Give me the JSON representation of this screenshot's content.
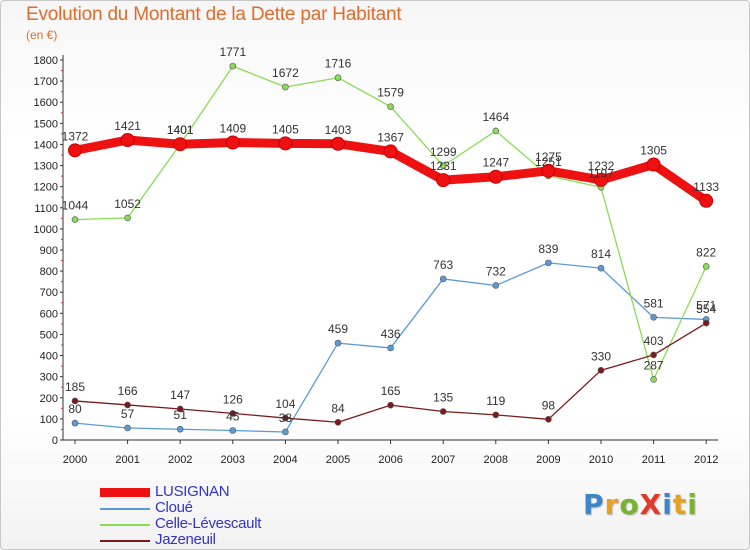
{
  "title": "Evolution du Montant de la Dette par Habitant",
  "subtitle": "(en €)",
  "logo": {
    "text": "ProXiti",
    "letters": [
      {
        "ch": "P",
        "color": "#3a86c8"
      },
      {
        "ch": "r",
        "color": "#e8a020"
      },
      {
        "ch": "o",
        "color": "#7ab32e"
      },
      {
        "ch": "X",
        "color": "#e03a2a"
      },
      {
        "ch": "i",
        "color": "#3a86c8"
      },
      {
        "ch": "t",
        "color": "#e8a020"
      },
      {
        "ch": "i",
        "color": "#7ab32e"
      }
    ]
  },
  "chart_data": {
    "type": "line",
    "categories": [
      "2000",
      "2001",
      "2002",
      "2003",
      "2004",
      "2005",
      "2006",
      "2007",
      "2008",
      "2009",
      "2010",
      "2011",
      "2012"
    ],
    "ylim": [
      0,
      1800
    ],
    "yticks": [
      0,
      100,
      200,
      300,
      400,
      500,
      600,
      700,
      800,
      900,
      1000,
      1100,
      1200,
      1300,
      1400,
      1500,
      1600,
      1700,
      1800
    ],
    "grid": false,
    "legend_position": "bottom-left",
    "series": [
      {
        "name": "LUSIGNAN",
        "color": "#ee1111",
        "bold": true,
        "values": [
          1372,
          1421,
          1401,
          1409,
          1405,
          1403,
          1367,
          1231,
          1247,
          1275,
          1232,
          1305,
          1133
        ]
      },
      {
        "name": "Cloué",
        "color": "#5b9bd5",
        "bold": false,
        "values": [
          80,
          57,
          51,
          45,
          38,
          459,
          436,
          763,
          732,
          839,
          814,
          581,
          571
        ]
      },
      {
        "name": "Celle-Lévescault",
        "color": "#88dd55",
        "bold": false,
        "values": [
          1044,
          1052,
          1401,
          1771,
          1672,
          1716,
          1579,
          1299,
          1464,
          1251,
          1197,
          287,
          822
        ]
      },
      {
        "name": "Jazeneuil",
        "color": "#7a1a1a",
        "bold": false,
        "values": [
          185,
          166,
          147,
          126,
          104,
          84,
          165,
          135,
          119,
          98,
          330,
          403,
          554
        ]
      }
    ]
  }
}
